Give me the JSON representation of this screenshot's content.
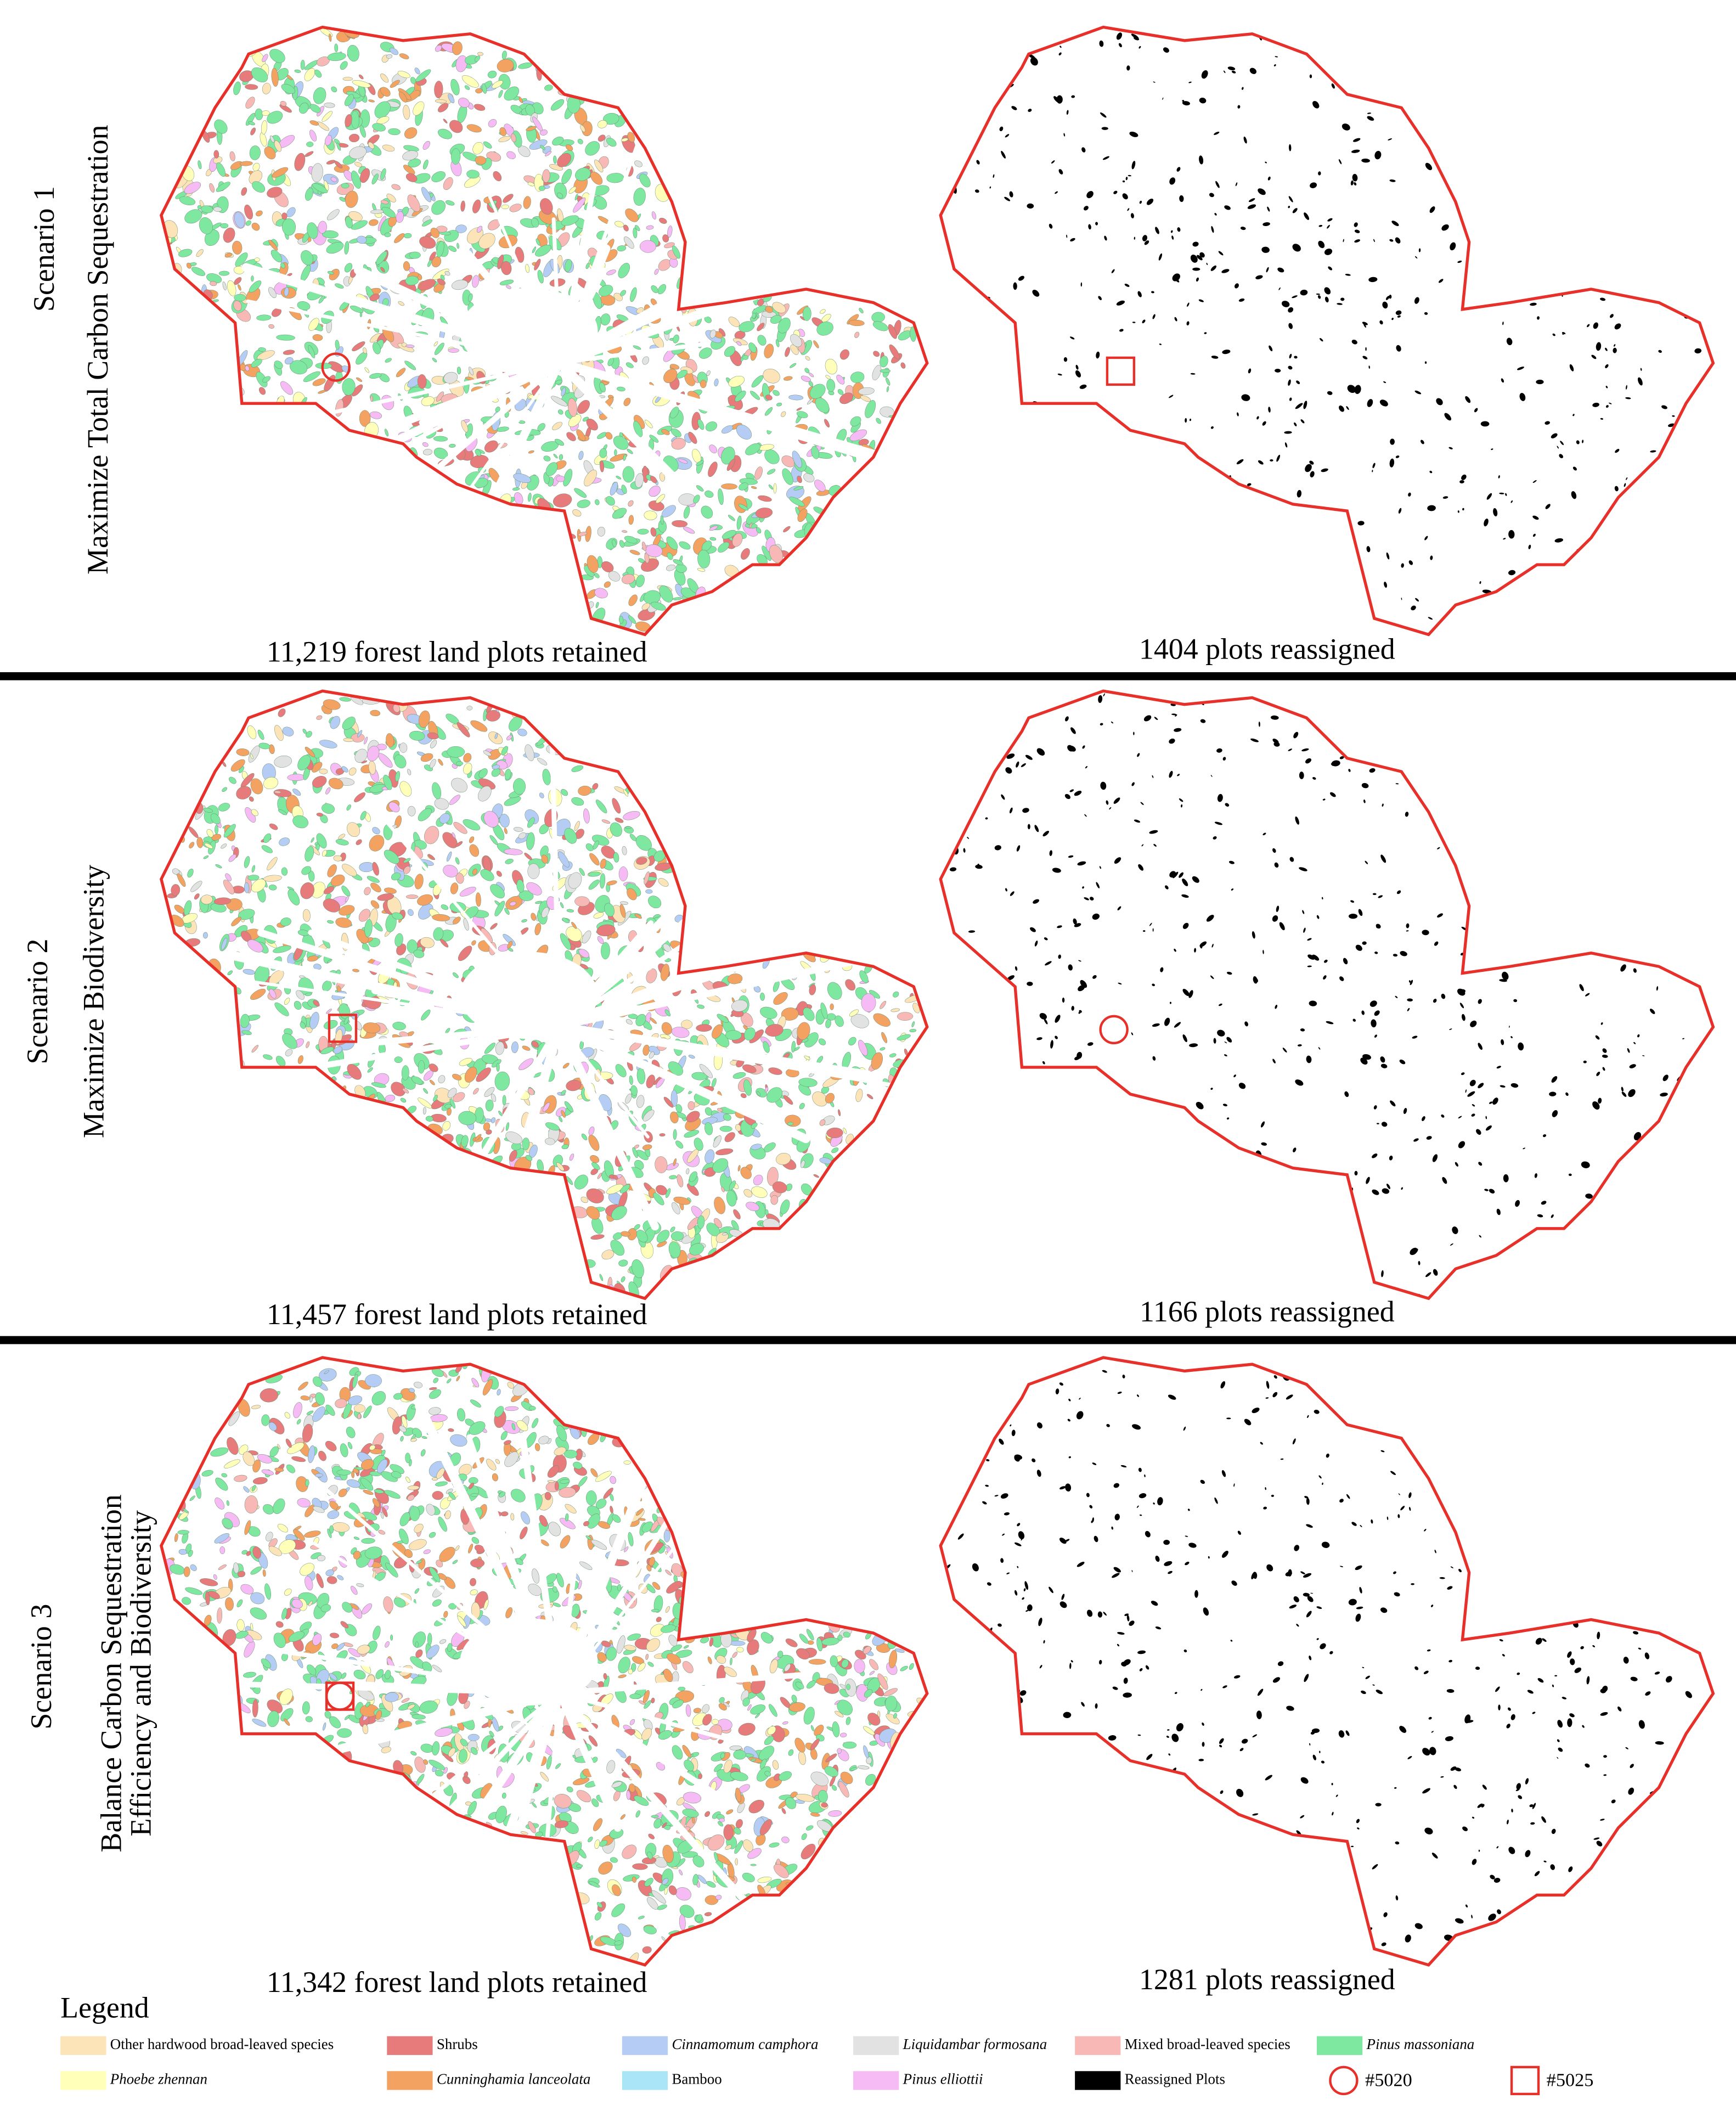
{
  "rows": [
    {
      "label": "Scenario 1",
      "objective": [
        "Maximize Total Carbon Sequestration"
      ],
      "retained": "11,219 forest land plots retained",
      "reassigned": "1404 plots reassigned"
    },
    {
      "label": "Scenario 2",
      "objective": [
        "Maximize Biodiversity"
      ],
      "retained": "11,457 forest land plots retained",
      "reassigned": "1166 plots reassigned"
    },
    {
      "label": "Scenario 3",
      "objective": [
        "Balance Carbon Sequestration",
        "Efficiency and Biodiversity"
      ],
      "retained": "11,342 forest land plots retained",
      "reassigned": "1281 plots reassigned"
    }
  ],
  "legend": {
    "title": "Legend",
    "items": [
      {
        "label": "Other hardwood broad-leaved species",
        "color": "#fde3b8",
        "italic": false
      },
      {
        "label": "Phoebe zhennan",
        "color": "#ffffba",
        "italic": true
      },
      {
        "label": "Shrubs",
        "color": "#e77b7c",
        "italic": false
      },
      {
        "label": "Cunninghamia lanceolata",
        "color": "#f4a262",
        "italic": true
      },
      {
        "label": "Cinnamomum camphora",
        "color": "#b5cdf4",
        "italic": true
      },
      {
        "label": "Bamboo",
        "color": "#a9e5f7",
        "italic": false
      },
      {
        "label": "Liquidambar formosana",
        "color": "#e2e2e2",
        "italic": true
      },
      {
        "label": "Pinus elliottii",
        "color": "#f6baf4",
        "italic": true
      },
      {
        "label": "Mixed broad-leaved species",
        "color": "#f8b9b6",
        "italic": false
      },
      {
        "label": "Reassigned Plots",
        "color": "#000000",
        "italic": false
      },
      {
        "label": "Pinus massoniana",
        "color": "#7ee7a0",
        "italic": true
      }
    ],
    "markers": [
      {
        "label": "#5020",
        "shape": "circle",
        "color": "#e8302a"
      },
      {
        "label": "#5025",
        "shape": "square",
        "color": "#e8302a"
      }
    ]
  }
}
